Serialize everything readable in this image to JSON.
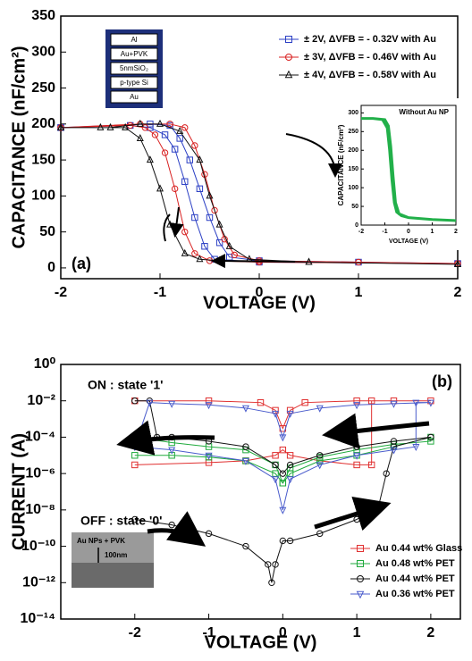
{
  "chart_data": [
    {
      "type": "line",
      "panel_label": "(a)",
      "x_label": "VOLTAGE (V)",
      "y_label": "CAPACITANCE (nF/cm²)",
      "xlim": [
        -2,
        2
      ],
      "ylim": [
        -15,
        350
      ],
      "xticks": [
        -2,
        -1,
        0,
        1,
        2
      ],
      "yticks": [
        0,
        50,
        100,
        150,
        200,
        250,
        300,
        350
      ],
      "schematic_layers": [
        "Al",
        "Au+PVK",
        "5nmSiO₂",
        "p-type Si",
        "Au"
      ],
      "series": [
        {
          "name": "± 2V, ΔVFB = - 0.32V with Au",
          "color": "#2b3fc4",
          "marker": "square",
          "x": [
            -2,
            -1.1,
            -0.9,
            -0.8,
            -0.7,
            -0.6,
            -0.5,
            -0.4,
            -0.3,
            0,
            1,
            2,
            2,
            0,
            -0.45,
            -0.55,
            -0.65,
            -0.75,
            -0.85,
            -0.95,
            -1.1,
            -1.3,
            -2
          ],
          "values": [
            195,
            200,
            198,
            180,
            150,
            110,
            70,
            35,
            15,
            10,
            8,
            6,
            6,
            8,
            12,
            30,
            70,
            120,
            165,
            185,
            195,
            198,
            195
          ]
        },
        {
          "name": "± 3V, ΔVFB = - 0.46V with Au",
          "color": "#d82020",
          "marker": "circle",
          "x": [
            -2,
            -1.2,
            -0.9,
            -0.75,
            -0.65,
            -0.55,
            -0.45,
            -0.35,
            -0.25,
            0,
            1,
            2,
            2,
            0,
            -0.5,
            -0.65,
            -0.75,
            -0.85,
            -0.95,
            -1.05,
            -1.15,
            -1.3,
            -2
          ],
          "values": [
            195,
            200,
            200,
            195,
            170,
            130,
            80,
            40,
            18,
            10,
            8,
            6,
            6,
            8,
            10,
            20,
            50,
            110,
            160,
            185,
            195,
            198,
            195
          ]
        },
        {
          "name": "± 4V, ΔVFB = - 0.58V with Au",
          "color": "#111111",
          "marker": "triangle",
          "x": [
            -2,
            -1.5,
            -1.2,
            -1,
            -0.8,
            -0.6,
            -0.5,
            -0.4,
            -0.3,
            -0.1,
            0.5,
            2,
            2,
            0.5,
            -0.4,
            -0.6,
            -0.75,
            -0.9,
            -1,
            -1.1,
            -1.2,
            -1.35,
            -1.6,
            -2
          ],
          "values": [
            195,
            195,
            200,
            200,
            190,
            150,
            100,
            60,
            30,
            12,
            8,
            5,
            5,
            8,
            10,
            12,
            20,
            60,
            110,
            150,
            180,
            195,
            195,
            195
          ]
        }
      ]
    },
    {
      "type": "line",
      "title": "Without Au NP",
      "x_label": "VOLTAGE (V)",
      "y_label": "CAPACITANCE (nF/cm²)",
      "xlim": [
        -2,
        2
      ],
      "ylim": [
        0,
        320
      ],
      "xticks": [
        -2,
        -1,
        0,
        1,
        2
      ],
      "yticks": [
        0,
        50,
        100,
        150,
        200,
        250,
        300
      ],
      "series": [
        {
          "color": "#22b04a",
          "marker": "none",
          "x": [
            -2,
            -1.5,
            -1.1,
            -0.9,
            -0.8,
            -0.7,
            -0.6,
            -0.5,
            -0.3,
            0,
            1,
            2,
            2,
            1,
            0,
            -0.4,
            -0.55,
            -0.65,
            -0.75,
            -0.85,
            -1,
            -1.5,
            -2
          ],
          "values": [
            285,
            285,
            282,
            260,
            200,
            120,
            60,
            35,
            25,
            20,
            15,
            12,
            12,
            15,
            20,
            30,
            60,
            130,
            210,
            265,
            282,
            285,
            285
          ]
        }
      ]
    },
    {
      "type": "line",
      "panel_label": "(b)",
      "x_label": "VOLTAGE (V)",
      "y_label": "CURRENT (A)",
      "log_y": true,
      "xlim": [
        -3,
        2.4
      ],
      "ylim": [
        1e-14,
        1
      ],
      "xticks": [
        -2,
        -1,
        0,
        1,
        2
      ],
      "yticks": [
        {
          "value": 1,
          "label": "10⁰"
        },
        {
          "value": 0.01,
          "label": "10⁻²"
        },
        {
          "value": 0.0001,
          "label": "10⁻⁴"
        },
        {
          "value": 1e-06,
          "label": "10⁻⁶"
        },
        {
          "value": 1e-08,
          "label": "10⁻⁸"
        },
        {
          "value": 1e-10,
          "label": "10⁻¹⁰"
        },
        {
          "value": 1e-12,
          "label": "10⁻¹²"
        },
        {
          "value": 1e-14,
          "label": "10⁻¹⁴"
        }
      ],
      "annotations": [
        "ON : state '1'",
        "OFF : state '0'",
        "Au NPs + PVK",
        "100nm"
      ],
      "series": [
        {
          "name": "Au 0.44 wt% Glass",
          "color": "#e03030",
          "marker": "square",
          "x": [
            -2,
            -1,
            -0.5,
            -0.1,
            0,
            0.1,
            0.5,
            1,
            1.2,
            1.2,
            1.5,
            2,
            1,
            0.3,
            0.1,
            0,
            -0.1,
            -0.3,
            -1,
            -2
          ],
          "values": [
            3e-06,
            4e-06,
            5e-06,
            1e-05,
            2e-05,
            1e-05,
            5e-06,
            3e-06,
            3e-06,
            0.01,
            0.01,
            0.01,
            0.01,
            0.008,
            0.003,
            0.0003,
            0.003,
            0.008,
            0.01,
            0.01
          ]
        },
        {
          "name": "Au 0.48 wt% PET",
          "color": "#1faa3c",
          "marker": "square",
          "x": [
            -2,
            -1.5,
            -1,
            -0.5,
            -0.1,
            0,
            0.1,
            0.5,
            1,
            1.5,
            2,
            2,
            1.5,
            1,
            0.5,
            0.1,
            0,
            -0.1,
            -0.5,
            -1,
            -1.5,
            -2
          ],
          "values": [
            1e-05,
            1e-05,
            8e-06,
            5e-06,
            1e-06,
            3e-07,
            1e-06,
            5e-06,
            1e-05,
            3e-05,
            0.0001,
            6e-05,
            4e-05,
            2e-05,
            8e-06,
            2e-06,
            3e-07,
            3e-06,
            2e-05,
            3e-05,
            5e-05,
            0.0001
          ]
        },
        {
          "name": "Au 0.44 wt% PET",
          "color": "#111111",
          "marker": "circle",
          "x": [
            -2,
            -1.5,
            -1,
            -0.5,
            -0.2,
            -0.15,
            -0.1,
            0,
            0.1,
            0.5,
            1,
            1.3,
            1.4,
            1.5,
            2,
            1.5,
            1,
            0.5,
            0.1,
            0,
            -0.1,
            -0.5,
            -1,
            -1.5,
            -1.7,
            -1.8,
            -2
          ],
          "values": [
            3e-09,
            1.5e-09,
            5e-10,
            1e-10,
            1e-11,
            1e-12,
            1e-11,
            2e-10,
            2e-10,
            5e-10,
            3e-09,
            2e-08,
            1e-06,
            3e-05,
            0.0001,
            6e-05,
            3e-05,
            1e-05,
            3e-06,
            1e-06,
            3e-06,
            3e-05,
            6e-05,
            0.0001,
            0.0001,
            0.01,
            0.01
          ]
        },
        {
          "name": "Au 0.36 wt% PET",
          "color": "#4a5ccc",
          "marker": "triangle-down",
          "x": [
            -2,
            -1.5,
            -1,
            -0.5,
            -0.1,
            0,
            0.1,
            0.5,
            1,
            1.5,
            1.8,
            1.8,
            2,
            1.5,
            1,
            0.5,
            0.1,
            0,
            -0.1,
            -0.5,
            -1,
            -1.5,
            -1.8,
            -2
          ],
          "values": [
            3e-05,
            2e-05,
            1e-05,
            5e-06,
            5e-07,
            1e-08,
            5e-07,
            3e-06,
            1e-05,
            2e-05,
            3e-05,
            0.008,
            0.008,
            0.007,
            0.006,
            0.004,
            0.002,
            0.0001,
            0.002,
            0.004,
            0.006,
            0.007,
            0.008,
            3e-05
          ]
        }
      ]
    }
  ]
}
